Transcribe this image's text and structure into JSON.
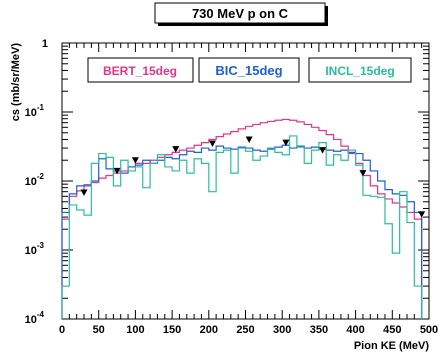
{
  "chart_data": {
    "type": "line",
    "title": "730 MeV p on C",
    "xlabel": "Pion KE (MeV)",
    "ylabel": "cs (mb/sr/MeV)",
    "xlim": [
      0,
      500
    ],
    "ylim": [
      0.0001,
      1
    ],
    "yscale": "log",
    "x_ticks": [
      0,
      50,
      100,
      150,
      200,
      250,
      300,
      350,
      400,
      450,
      500
    ],
    "x_tick_labels": [
      "0",
      "50",
      "100",
      "150",
      "200",
      "250",
      "300",
      "350",
      "400",
      "450",
      "500"
    ],
    "y_ticks": [
      0.0001,
      0.001,
      0.01,
      0.1,
      1
    ],
    "y_tick_labels": [
      {
        "base": "10",
        "exp": "-4"
      },
      {
        "base": "10",
        "exp": "-3"
      },
      {
        "base": "10",
        "exp": "-2"
      },
      {
        "base": "10",
        "exp": "-1"
      },
      {
        "base": "1",
        "exp": ""
      }
    ],
    "bin_width": 10,
    "legend": [
      {
        "label": "BERT_15deg",
        "color": "#e6338c"
      },
      {
        "label": "BIC_15deg",
        "color": "#1f5fd6"
      },
      {
        "label": "INCL_15deg",
        "color": "#2bbf9a"
      }
    ],
    "series": [
      {
        "name": "BERT_15deg",
        "color": "#e6338c",
        "x": [
          0,
          10,
          20,
          30,
          40,
          50,
          60,
          70,
          80,
          90,
          100,
          110,
          120,
          130,
          140,
          150,
          160,
          170,
          180,
          190,
          200,
          210,
          220,
          230,
          240,
          250,
          260,
          270,
          280,
          290,
          300,
          310,
          320,
          330,
          340,
          350,
          360,
          370,
          380,
          390,
          400,
          410,
          420,
          430,
          440,
          450,
          460,
          470,
          480
        ],
        "values": [
          0.0028,
          0.006,
          0.0072,
          0.0085,
          0.0095,
          0.011,
          0.012,
          0.013,
          0.014,
          0.016,
          0.018,
          0.018,
          0.02,
          0.022,
          0.024,
          0.026,
          0.028,
          0.03,
          0.033,
          0.036,
          0.04,
          0.044,
          0.048,
          0.052,
          0.057,
          0.062,
          0.066,
          0.07,
          0.073,
          0.076,
          0.078,
          0.076,
          0.072,
          0.066,
          0.06,
          0.054,
          0.047,
          0.04,
          0.032,
          0.025,
          0.018,
          0.012,
          0.0085,
          0.0065,
          0.0055,
          0.0048,
          0.0042,
          0.0035,
          0.0028
        ]
      },
      {
        "name": "BIC_15deg",
        "color": "#1f5fd6",
        "x": [
          0,
          10,
          20,
          30,
          40,
          50,
          60,
          70,
          80,
          90,
          100,
          110,
          120,
          130,
          140,
          150,
          160,
          170,
          180,
          190,
          200,
          210,
          220,
          230,
          240,
          250,
          260,
          270,
          280,
          290,
          300,
          310,
          320,
          330,
          340,
          350,
          360,
          370,
          380,
          390,
          400,
          410,
          420,
          430,
          440,
          450,
          460,
          470,
          480
        ],
        "values": [
          0.0035,
          0.0065,
          0.0085,
          0.0088,
          0.01,
          0.021,
          0.015,
          0.014,
          0.013,
          0.016,
          0.017,
          0.02,
          0.018,
          0.02,
          0.022,
          0.021,
          0.024,
          0.027,
          0.026,
          0.03,
          0.028,
          0.032,
          0.03,
          0.029,
          0.031,
          0.03,
          0.028,
          0.027,
          0.029,
          0.031,
          0.033,
          0.03,
          0.032,
          0.03,
          0.031,
          0.029,
          0.028,
          0.027,
          0.028,
          0.026,
          0.025,
          0.02,
          0.014,
          0.01,
          0.0075,
          0.0065,
          0.0062,
          0.005,
          0.0035
        ]
      },
      {
        "name": "INCL_15deg",
        "color": "#2bbf9a",
        "x": [
          0,
          10,
          20,
          30,
          40,
          50,
          60,
          70,
          80,
          90,
          100,
          110,
          120,
          130,
          140,
          150,
          160,
          170,
          180,
          190,
          200,
          210,
          220,
          230,
          240,
          250,
          260,
          270,
          280,
          290,
          300,
          310,
          320,
          330,
          340,
          350,
          360,
          370,
          380,
          390,
          400,
          410,
          420,
          430,
          440,
          450,
          460,
          470,
          480
        ],
        "values": [
          0.0003,
          0.0045,
          0.0038,
          0.0032,
          0.018,
          0.025,
          0.022,
          0.0085,
          0.02,
          0.014,
          0.016,
          0.008,
          0.018,
          0.024,
          0.016,
          0.014,
          0.02,
          0.013,
          0.021,
          0.018,
          0.007,
          0.026,
          0.028,
          0.013,
          0.03,
          0.027,
          0.02,
          0.023,
          0.03,
          0.026,
          0.024,
          0.045,
          0.031,
          0.018,
          0.028,
          0.036,
          0.017,
          0.024,
          0.02,
          0.028,
          0.017,
          0.0062,
          0.006,
          0.0058,
          0.0024,
          0.0009,
          0.007,
          0.0025,
          0.0003
        ]
      },
      {
        "name": "",
        "color": "#000000",
        "markers": "triangle-down",
        "x": [
          30,
          75,
          100,
          155,
          205,
          255,
          305,
          355,
          410,
          490
        ],
        "values": [
          0.0068,
          0.014,
          0.02,
          0.029,
          0.035,
          0.04,
          0.036,
          0.028,
          0.013,
          0.0033
        ]
      }
    ]
  }
}
